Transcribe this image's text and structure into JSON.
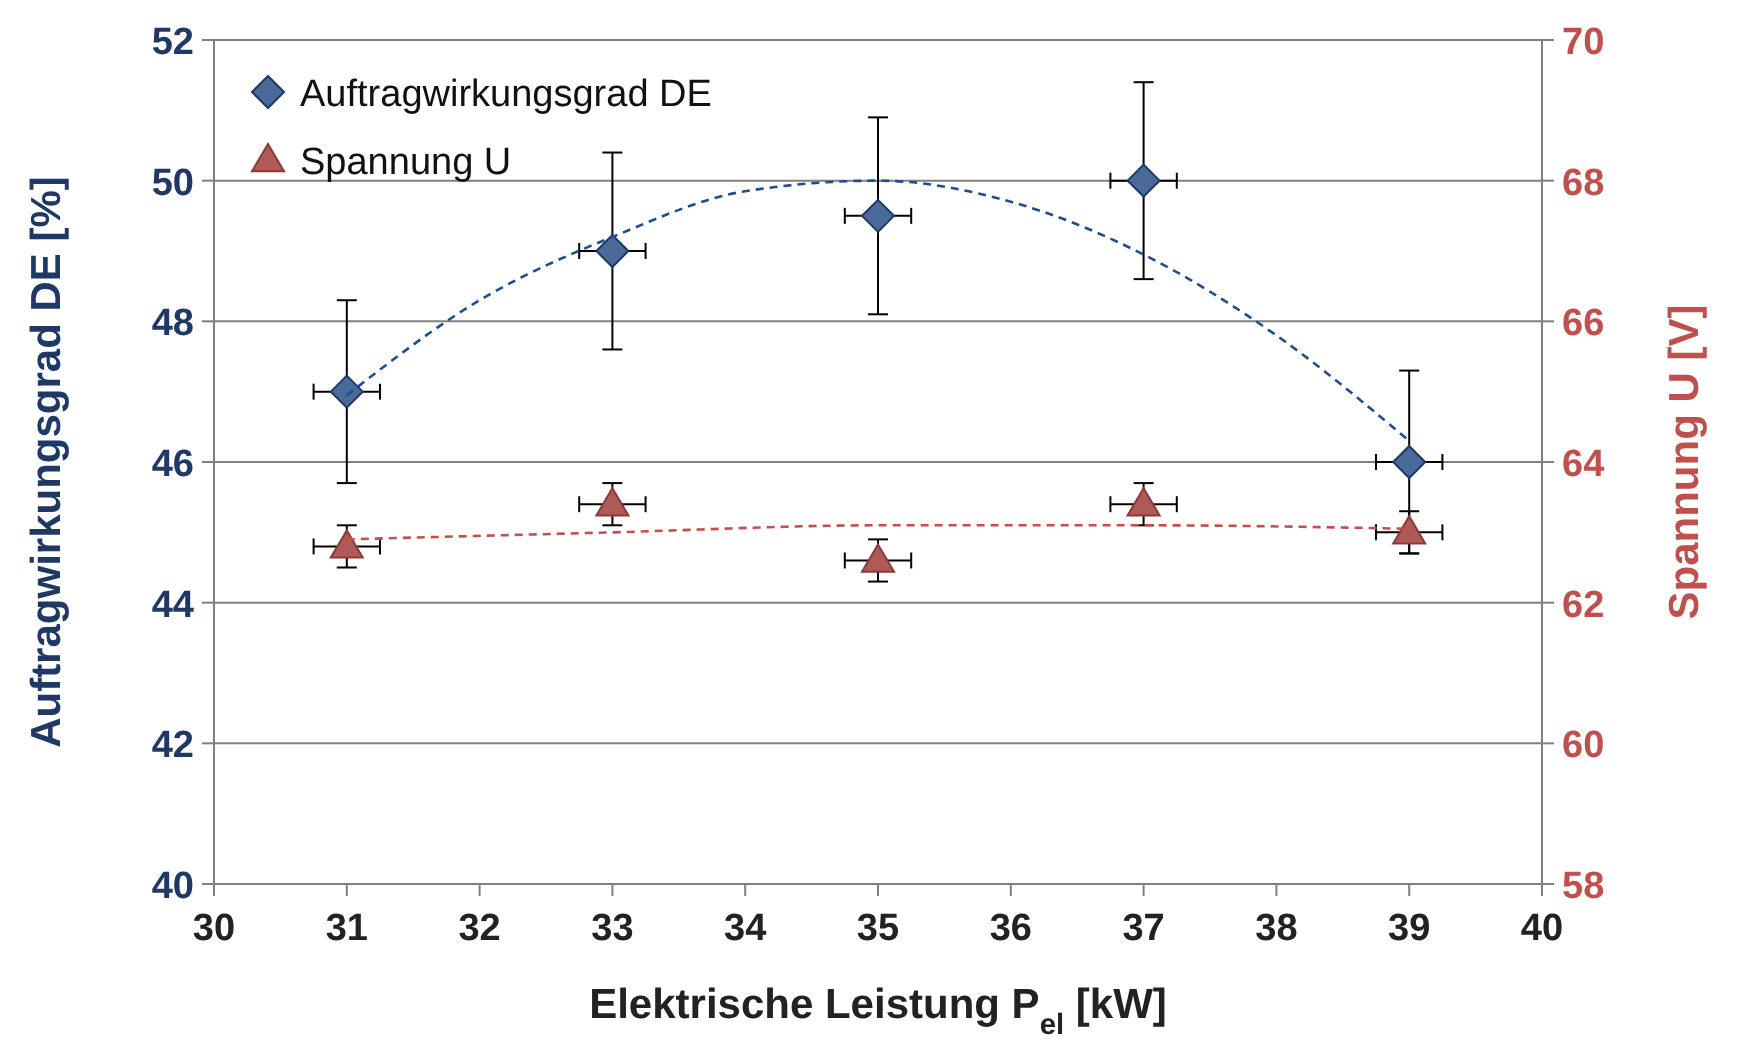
{
  "chart_data": {
    "type": "scatter",
    "xlabel": "Elektrische Leistung P$_{el}$  [kW]",
    "ylabel": "Auftragwirkungsgrad DE [%]",
    "y2label": "Spannung U [V]",
    "xlim": [
      30,
      40
    ],
    "xticks": [
      30,
      31,
      32,
      33,
      34,
      35,
      36,
      37,
      38,
      39,
      40
    ],
    "ylim": [
      40,
      52
    ],
    "yticks": [
      40,
      42,
      44,
      46,
      48,
      50,
      52
    ],
    "y2lim": [
      58,
      70
    ],
    "y2ticks": [
      58,
      60,
      62,
      64,
      66,
      68,
      70
    ],
    "grid": "y",
    "legend": "top left",
    "series": [
      {
        "name": "Auftragwirkungsgrad DE",
        "marker": "diamond",
        "color": "#4a6a9a",
        "x": [
          31,
          33,
          35,
          37,
          39
        ],
        "values": [
          47,
          49,
          49.5,
          50,
          46
        ],
        "errors": [
          1.3,
          1.4,
          1.4,
          1.4,
          1.3
        ],
        "xerrors": [
          0.25,
          0.25,
          0.25,
          0.25,
          0.25
        ]
      },
      {
        "name": "Spannung U",
        "marker": "triangle",
        "axis": "y2",
        "color": "#b05a57",
        "x": [
          31,
          33,
          35,
          37,
          39
        ],
        "values": [
          62.8,
          63.4,
          62.6,
          63.4,
          63
        ],
        "errors": [
          0.3,
          0.3,
          0.3,
          0.3,
          0.3
        ],
        "xerrors": [
          0.25,
          0.25,
          0.25,
          0.25,
          0.25
        ]
      },
      {
        "type": "line",
        "marker": "none",
        "line_style": "dashed",
        "color": "#1f4e8c",
        "x": [
          31,
          32,
          33,
          34,
          35,
          36,
          37,
          38,
          39
        ],
        "values": [
          46.95,
          48.3,
          49.2,
          49.85,
          50,
          49.7,
          48.95,
          47.8,
          46.3
        ]
      },
      {
        "type": "line",
        "marker": "none",
        "line_style": "dashed",
        "axis": "y2",
        "color": "#c0504d",
        "x": [
          31,
          33,
          35,
          37,
          39
        ],
        "values": [
          62.9,
          63,
          63.1,
          63.1,
          63.05
        ]
      }
    ]
  }
}
